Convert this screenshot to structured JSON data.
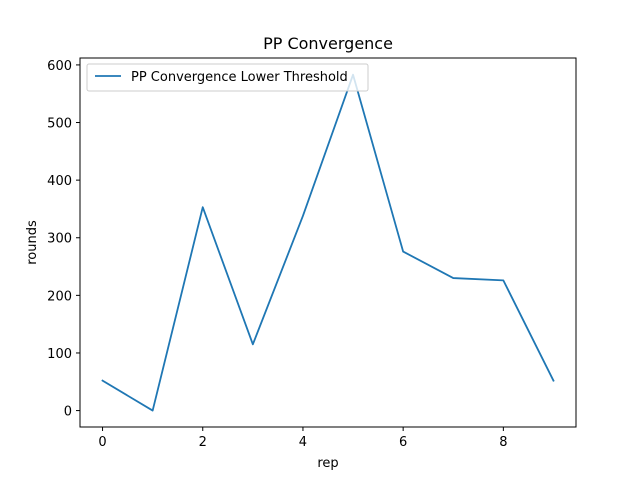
{
  "chart_data": {
    "type": "line",
    "title": "PP Convergence",
    "xlabel": "rep",
    "ylabel": "rounds",
    "xlim": [
      -0.45,
      9.45
    ],
    "ylim": [
      -28.5,
      612
    ],
    "xticks": [
      0,
      2,
      4,
      6,
      8
    ],
    "yticks": [
      0,
      100,
      200,
      300,
      400,
      500,
      600
    ],
    "grid": false,
    "legend_position": "upper-left",
    "series": [
      {
        "name": "PP Convergence Lower Threshold",
        "color": "#1f77b4",
        "x": [
          0,
          1,
          2,
          3,
          4,
          5,
          6,
          7,
          8,
          9
        ],
        "y": [
          52,
          0,
          353,
          115,
          338,
          583,
          276,
          230,
          226,
          52
        ]
      }
    ]
  }
}
